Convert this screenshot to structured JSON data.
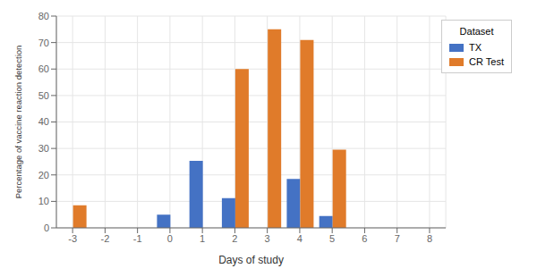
{
  "chart_data": {
    "type": "bar",
    "xlabel": "Days of study",
    "ylabel": "Percentage of vaccine reaction detection",
    "categories": [
      "-3",
      "-2",
      "-1",
      "0",
      "1",
      "2",
      "3",
      "4",
      "5",
      "6",
      "7",
      "8"
    ],
    "series": [
      {
        "name": "TX",
        "color": "#4472c4",
        "values": [
          null,
          null,
          null,
          5.0,
          25.3,
          11.2,
          null,
          18.5,
          4.5,
          null,
          null,
          null
        ]
      },
      {
        "name": "CR Test",
        "color": "#e07b2a",
        "values": [
          8.5,
          null,
          null,
          null,
          null,
          60.0,
          75.0,
          71.0,
          29.5,
          null,
          null,
          null
        ]
      }
    ],
    "ylim": [
      0,
      80
    ],
    "yticks": [
      0,
      10,
      20,
      30,
      40,
      50,
      60,
      70,
      80
    ],
    "grid": true,
    "legend": "upper right",
    "legend_title": "Dataset"
  }
}
